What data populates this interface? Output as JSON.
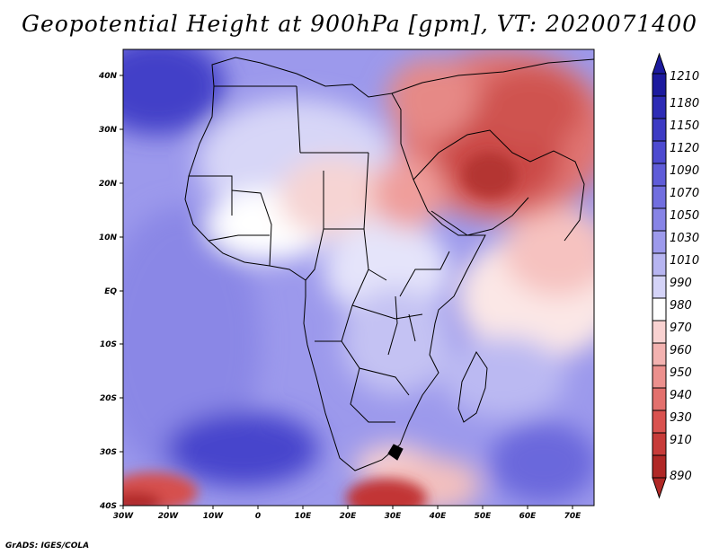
{
  "title": "Geopotential Height at 900hPa [gpm], VT: 2020071400",
  "footer": "GrADS: IGES/COLA",
  "map": {
    "variable": "Geopotential Height",
    "level": "900hPa",
    "units": "gpm",
    "valid_time": "2020071400",
    "lon_ticks": [
      "30W",
      "20W",
      "10W",
      "0",
      "10E",
      "20E",
      "30E",
      "40E",
      "50E",
      "60E",
      "70E"
    ],
    "lat_ticks": [
      "40N",
      "30N",
      "20N",
      "10N",
      "EQ",
      "10S",
      "20S",
      "30S",
      "40S"
    ],
    "lon_range": [
      -30,
      75
    ],
    "lat_range": [
      -40,
      45
    ]
  },
  "colorbar": {
    "labels": [
      "1210",
      "1180",
      "1150",
      "1120",
      "1090",
      "1070",
      "1050",
      "1030",
      "1010",
      "990",
      "980",
      "970",
      "960",
      "950",
      "940",
      "930",
      "910",
      "890"
    ],
    "colors": [
      "#1c1a9e",
      "#2d2bb5",
      "#3d3bc4",
      "#4d4ad0",
      "#5f5cd8",
      "#716edf",
      "#8784e6",
      "#9d9aec",
      "#b7b5f1",
      "#d4d3f7",
      "#ffffff",
      "#f9d2d1",
      "#f3b2b0",
      "#ec908d",
      "#e3706d",
      "#d9524f",
      "#c73b39",
      "#b02826"
    ]
  }
}
